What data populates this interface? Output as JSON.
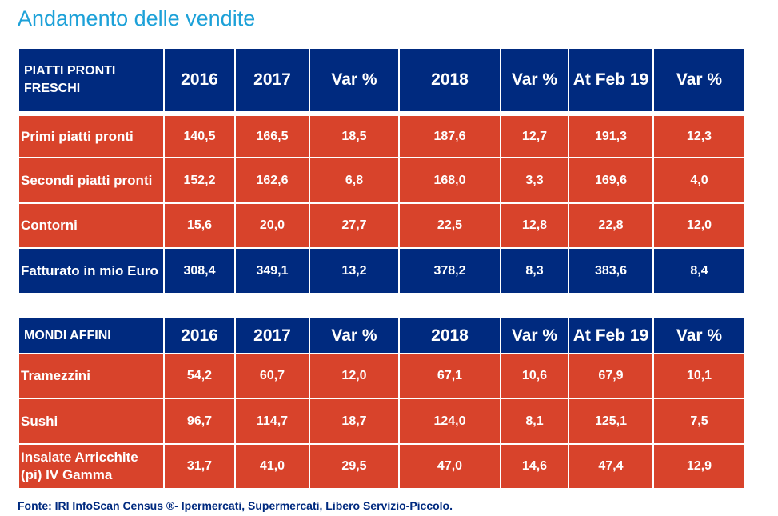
{
  "title": "Andamento delle vendite",
  "colors": {
    "title": "#1da1d8",
    "header_bg": "#002a7f",
    "row_bg": "#d8432b",
    "text_light": "#ffffff",
    "source": "#002a7f"
  },
  "table1": {
    "label": "PIATTI PRONTI FRESCHI",
    "columns": [
      "2016",
      "2017",
      "Var %",
      "2018",
      "Var %",
      "At Feb 19",
      "Var %"
    ],
    "rows": [
      {
        "label": "Primi piatti pronti",
        "cells": [
          "140,5",
          "166,5",
          "18,5",
          "187,6",
          "12,7",
          "191,3",
          "12,3"
        ]
      },
      {
        "label": "Secondi piatti pronti",
        "cells": [
          "152,2",
          "162,6",
          "6,8",
          "168,0",
          "3,3",
          "169,6",
          "4,0"
        ]
      },
      {
        "label": "Contorni",
        "cells": [
          "15,6",
          "20,0",
          "27,7",
          "22,5",
          "12,8",
          "22,8",
          "12,0"
        ]
      },
      {
        "label": "Fatturato in mio Euro",
        "cells": [
          "308,4",
          "349,1",
          "13,2",
          "378,2",
          "8,3",
          "383,6",
          "8,4"
        ]
      }
    ]
  },
  "table2": {
    "label": "MONDI AFFINI",
    "columns": [
      "2016",
      "2017",
      "Var %",
      "2018",
      "Var %",
      "At Feb 19",
      "Var %"
    ],
    "rows": [
      {
        "label": "Tramezzini",
        "cells": [
          "54,2",
          "60,7",
          "12,0",
          "67,1",
          "10,6",
          "67,9",
          "10,1"
        ]
      },
      {
        "label": "Sushi",
        "cells": [
          "96,7",
          "114,7",
          "18,7",
          "124,0",
          "8,1",
          "125,1",
          "7,5"
        ]
      },
      {
        "label": "Insalate Arricchite (pi) IV Gamma",
        "cells": [
          "31,7",
          "41,0",
          "29,5",
          "47,0",
          "14,6",
          "47,4",
          "12,9"
        ]
      }
    ]
  },
  "source": "Fonte: IRI InfoScan Census ®- Ipermercati, Supermercati, Libero Servizio-Piccolo."
}
